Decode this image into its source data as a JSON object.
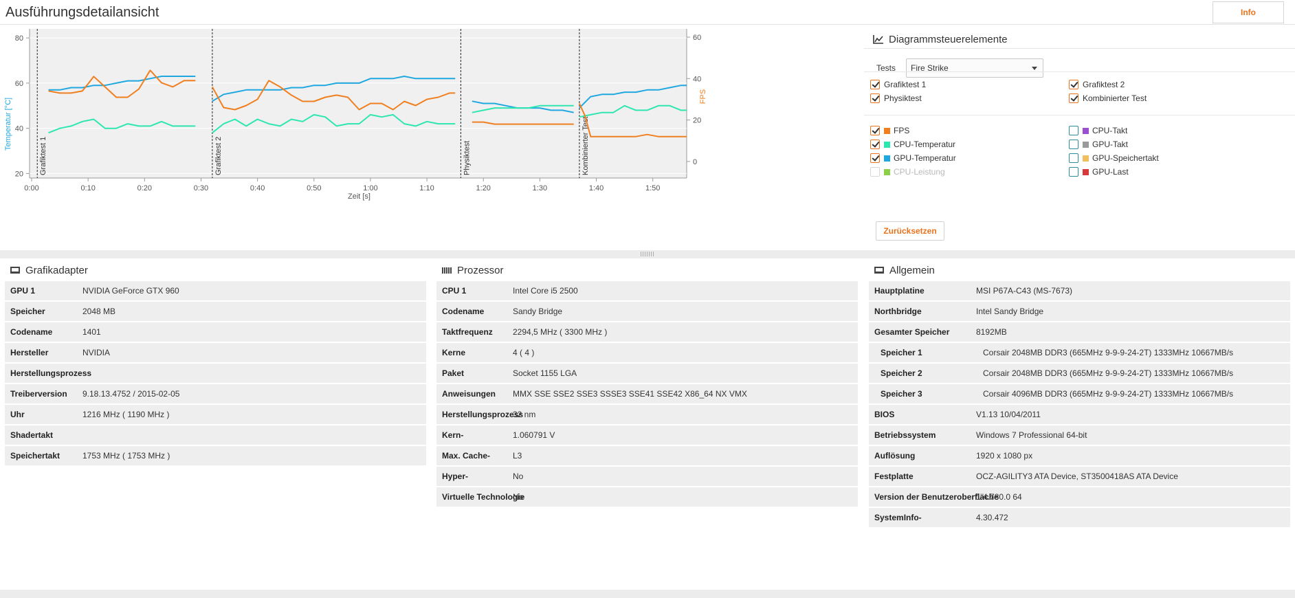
{
  "header": {
    "title": "Ausführungsdetailansicht",
    "info_label": "Info"
  },
  "chart": {
    "left_axis_label": "Temperatur [°C]",
    "right_axis_label": "FPS",
    "x_axis_label": "Zeit [s]",
    "left_ticks": [
      "80",
      "60",
      "40",
      "20"
    ],
    "right_ticks": [
      "60",
      "40",
      "20",
      "0"
    ],
    "x_ticks": [
      "0:00",
      "0:10",
      "0:20",
      "0:30",
      "0:40",
      "0:50",
      "1:00",
      "1:10",
      "1:20",
      "1:30",
      "1:40",
      "1:50"
    ],
    "segment_labels": [
      "Grafiktest 1",
      "Grafiktest 2",
      "Physiktest",
      "Kombinierter Test"
    ]
  },
  "chart_data": {
    "type": "line",
    "xlabel": "Zeit [s]",
    "ylabel": "Temperatur [°C]",
    "y2label": "FPS",
    "ylim": [
      18,
      84
    ],
    "y2lim": [
      -8,
      64
    ],
    "xlim": [
      0,
      116
    ],
    "segments": [
      {
        "name": "Grafiktest 1",
        "start": 1
      },
      {
        "name": "Grafiktest 2",
        "start": 32
      },
      {
        "name": "Physiktest",
        "start": 76
      },
      {
        "name": "Kombinierter Test",
        "start": 97
      }
    ],
    "series": [
      {
        "name": "GPU-Temperatur",
        "axis": "left",
        "color": "#1fa8e0",
        "segments": [
          [
            [
              3,
              57
            ],
            [
              5,
              57
            ],
            [
              7,
              58
            ],
            [
              9,
              58
            ],
            [
              11,
              59
            ],
            [
              13,
              59
            ],
            [
              15,
              60
            ],
            [
              17,
              61
            ],
            [
              19,
              61
            ],
            [
              21,
              62
            ],
            [
              23,
              63
            ],
            [
              25,
              63
            ],
            [
              27,
              63
            ],
            [
              29,
              63
            ]
          ],
          [
            [
              32,
              52
            ],
            [
              34,
              55
            ],
            [
              36,
              56
            ],
            [
              38,
              57
            ],
            [
              40,
              57
            ],
            [
              42,
              57
            ],
            [
              44,
              57
            ],
            [
              46,
              58
            ],
            [
              48,
              58
            ],
            [
              50,
              59
            ],
            [
              52,
              59
            ],
            [
              54,
              60
            ],
            [
              56,
              60
            ],
            [
              58,
              60
            ],
            [
              60,
              62
            ],
            [
              62,
              62
            ],
            [
              64,
              62
            ],
            [
              66,
              63
            ],
            [
              68,
              62
            ],
            [
              70,
              62
            ],
            [
              72,
              62
            ],
            [
              74,
              62
            ],
            [
              75,
              62
            ]
          ],
          [
            [
              78,
              52
            ],
            [
              80,
              51
            ],
            [
              82,
              51
            ],
            [
              84,
              50
            ],
            [
              86,
              49
            ],
            [
              88,
              49
            ],
            [
              90,
              49
            ],
            [
              92,
              48
            ],
            [
              94,
              48
            ],
            [
              96,
              47
            ]
          ],
          [
            [
              97,
              49
            ],
            [
              99,
              54
            ],
            [
              101,
              55
            ],
            [
              103,
              55
            ],
            [
              105,
              56
            ],
            [
              107,
              56
            ],
            [
              109,
              57
            ],
            [
              111,
              57
            ],
            [
              113,
              58
            ],
            [
              115,
              59
            ],
            [
              116,
              59
            ]
          ]
        ]
      },
      {
        "name": "CPU-Temperatur",
        "axis": "left",
        "color": "#2de6b0",
        "segments": [
          [
            [
              3,
              38
            ],
            [
              5,
              40
            ],
            [
              7,
              41
            ],
            [
              9,
              43
            ],
            [
              11,
              44
            ],
            [
              13,
              40
            ],
            [
              15,
              40
            ],
            [
              17,
              42
            ],
            [
              19,
              41
            ],
            [
              21,
              41
            ],
            [
              23,
              43
            ],
            [
              25,
              41
            ],
            [
              27,
              41
            ],
            [
              29,
              41
            ]
          ],
          [
            [
              32,
              38
            ],
            [
              34,
              42
            ],
            [
              36,
              44
            ],
            [
              38,
              41
            ],
            [
              40,
              44
            ],
            [
              42,
              42
            ],
            [
              44,
              41
            ],
            [
              46,
              44
            ],
            [
              48,
              43
            ],
            [
              50,
              46
            ],
            [
              52,
              45
            ],
            [
              54,
              41
            ],
            [
              56,
              42
            ],
            [
              58,
              42
            ],
            [
              60,
              46
            ],
            [
              62,
              45
            ],
            [
              64,
              46
            ],
            [
              66,
              42
            ],
            [
              68,
              41
            ],
            [
              70,
              43
            ],
            [
              72,
              42
            ],
            [
              74,
              42
            ],
            [
              75,
              42
            ]
          ],
          [
            [
              78,
              47
            ],
            [
              80,
              48
            ],
            [
              82,
              49
            ],
            [
              84,
              49
            ],
            [
              86,
              49
            ],
            [
              88,
              49
            ],
            [
              90,
              50
            ],
            [
              92,
              50
            ],
            [
              94,
              50
            ],
            [
              96,
              50
            ]
          ],
          [
            [
              97,
              45
            ],
            [
              99,
              46
            ],
            [
              101,
              47
            ],
            [
              103,
              47
            ],
            [
              105,
              50
            ],
            [
              107,
              48
            ],
            [
              109,
              48
            ],
            [
              111,
              50
            ],
            [
              113,
              50
            ],
            [
              115,
              48
            ],
            [
              116,
              48
            ]
          ]
        ]
      },
      {
        "name": "FPS",
        "axis": "right",
        "color": "#f07f1f",
        "segments": [
          [
            [
              3,
              34
            ],
            [
              5,
              33
            ],
            [
              7,
              33
            ],
            [
              9,
              34
            ],
            [
              11,
              41
            ],
            [
              13,
              36
            ],
            [
              15,
              31
            ],
            [
              17,
              31
            ],
            [
              19,
              35
            ],
            [
              21,
              44
            ],
            [
              23,
              38
            ],
            [
              25,
              36
            ],
            [
              27,
              39
            ],
            [
              29,
              39
            ]
          ],
          [
            [
              32,
              36
            ],
            [
              34,
              26
            ],
            [
              36,
              25
            ],
            [
              38,
              27
            ],
            [
              40,
              30
            ],
            [
              42,
              39
            ],
            [
              44,
              36
            ],
            [
              46,
              32
            ],
            [
              48,
              29
            ],
            [
              50,
              29
            ],
            [
              52,
              31
            ],
            [
              54,
              32
            ],
            [
              56,
              31
            ],
            [
              58,
              25
            ],
            [
              60,
              28
            ],
            [
              62,
              28
            ],
            [
              64,
              25
            ],
            [
              66,
              29
            ],
            [
              68,
              27
            ],
            [
              70,
              30
            ],
            [
              72,
              31
            ],
            [
              74,
              33
            ],
            [
              75,
              33
            ]
          ],
          [
            [
              78,
              19
            ],
            [
              80,
              19
            ],
            [
              82,
              18
            ],
            [
              84,
              18
            ],
            [
              86,
              18
            ],
            [
              88,
              18
            ],
            [
              90,
              18
            ],
            [
              92,
              18
            ],
            [
              94,
              18
            ],
            [
              96,
              18
            ]
          ],
          [
            [
              97,
              28
            ],
            [
              98,
              22
            ],
            [
              99,
              12
            ],
            [
              101,
              12
            ],
            [
              103,
              12
            ],
            [
              105,
              12
            ],
            [
              107,
              12
            ],
            [
              109,
              13
            ],
            [
              111,
              12
            ],
            [
              113,
              12
            ],
            [
              115,
              12
            ],
            [
              116,
              12
            ]
          ]
        ]
      }
    ]
  },
  "controls": {
    "title": "Diagrammsteuerelemente",
    "tests_label": "Tests",
    "tests_selected": "Fire Strike",
    "test_checks": [
      {
        "label": "Grafiktest 1",
        "checked": true
      },
      {
        "label": "Grafiktest 2",
        "checked": true
      },
      {
        "label": "Physiktest",
        "checked": true
      },
      {
        "label": "Kombinierter Test",
        "checked": true
      }
    ],
    "series_checks": [
      {
        "label": "FPS",
        "checked": true,
        "color": "#f07f1f"
      },
      {
        "label": "CPU-Takt",
        "checked": false,
        "color": "#9a4fd0"
      },
      {
        "label": "CPU-Temperatur",
        "checked": true,
        "color": "#2de6b0"
      },
      {
        "label": "GPU-Takt",
        "checked": false,
        "color": "#9a9a9a"
      },
      {
        "label": "GPU-Temperatur",
        "checked": true,
        "color": "#1fa8e0"
      },
      {
        "label": "GPU-Speichertakt",
        "checked": false,
        "color": "#f0c060"
      },
      {
        "label": "CPU-Leistung",
        "checked": false,
        "color": "#8cd048",
        "disabled": true
      },
      {
        "label": "GPU-Last",
        "checked": false,
        "color": "#d83a3a"
      }
    ],
    "reset_label": "Zurücksetzen"
  },
  "panels": {
    "gpu": {
      "title": "Grafikadapter",
      "rows": [
        {
          "k": "GPU 1",
          "v": "NVIDIA GeForce GTX 960"
        },
        {
          "k": "Speicher",
          "v": "2048 MB"
        },
        {
          "k": "Codename",
          "v": "1401"
        },
        {
          "k": "Hersteller",
          "v": "NVIDIA"
        },
        {
          "k": "Herstellungsprozess",
          "v": ""
        },
        {
          "k": "Treiberversion",
          "v": "9.18.13.4752 / 2015-02-05"
        },
        {
          "k": "Uhr",
          "v": "1216 MHz ( 1190 MHz )"
        },
        {
          "k": "Shadertakt",
          "v": ""
        },
        {
          "k": "Speichertakt",
          "v": "1753 MHz ( 1753 MHz )"
        }
      ]
    },
    "cpu": {
      "title": "Prozessor",
      "rows": [
        {
          "k": "CPU 1",
          "v": "Intel Core i5 2500"
        },
        {
          "k": "Codename",
          "v": "Sandy Bridge"
        },
        {
          "k": "Taktfrequenz",
          "v": "2294,5 MHz ( 3300 MHz )"
        },
        {
          "k": "Kerne",
          "v": "4 ( 4 )"
        },
        {
          "k": "Paket",
          "v": "Socket 1155 LGA"
        },
        {
          "k": "Anweisungen",
          "v": "MMX SSE SSE2 SSE3 SSSE3 SSE41 SSE42 X86_64 NX VMX"
        },
        {
          "k": "Herstellungsprozess",
          "v": "32 nm"
        },
        {
          "k": "Kern-",
          "v": "1.060791 V"
        },
        {
          "k": "Max. Cache-",
          "v": "L3"
        },
        {
          "k": "Hyper-",
          "v": "No"
        },
        {
          "k": "Virtuelle Technologie",
          "v": "No"
        }
      ]
    },
    "general": {
      "title": "Allgemein",
      "rows": [
        {
          "k": "Hauptplatine",
          "v": "MSI P67A-C43 (MS-7673)"
        },
        {
          "k": "Northbridge",
          "v": "Intel Sandy Bridge"
        },
        {
          "k": "Gesamter Speicher",
          "v": "8192MB"
        },
        {
          "k": "Speicher 1",
          "v": "Corsair 2048MB  DDR3 (665MHz 9-9-9-24-2T) 1333MHz 10667MB/s",
          "sub": true
        },
        {
          "k": "Speicher 2",
          "v": "Corsair 2048MB  DDR3 (665MHz 9-9-9-24-2T) 1333MHz 10667MB/s",
          "sub": true
        },
        {
          "k": "Speicher 3",
          "v": "Corsair 4096MB  DDR3 (665MHz 9-9-9-24-2T) 1333MHz 10667MB/s",
          "sub": true
        },
        {
          "k": "BIOS",
          "v": "V1.13 10/04/2011"
        },
        {
          "k": "Betriebssystem",
          "v": "Windows 7 Professional 64-bit"
        },
        {
          "k": "Auflösung",
          "v": "1920 x 1080 px"
        },
        {
          "k": "Festplatte",
          "v": "OCZ-AGILITY3 ATA Device, ST3500418AS ATA Device"
        },
        {
          "k": "Version der Benutzeroberfläche",
          "v": "1.4.780.0 64"
        },
        {
          "k": "SystemInfo-",
          "v": "4.30.472"
        }
      ]
    }
  }
}
